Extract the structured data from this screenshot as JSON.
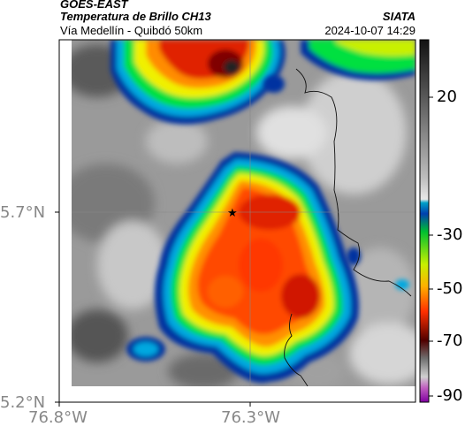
{
  "header": {
    "satellite": "GOES-EAST",
    "product": "Temperatura de Brillo CH13",
    "region": "Vía Medellín - Quibdó 50km",
    "agency": "SIATA",
    "datetime": "2024-10-07 14:29"
  },
  "axes": {
    "lat_ticks": [
      "5.7°N",
      "5.2°N"
    ],
    "lon_ticks": [
      "76.8°W",
      "76.3°W"
    ]
  },
  "colorbar": {
    "labels": [
      "20",
      "-30",
      "-50",
      "-70",
      "-90"
    ],
    "colors": {
      "warm_top": "#1a1a1a",
      "gray_mid": "#b0b0b0",
      "cyan": "#00b4d8",
      "blue": "#0030a0",
      "green": "#00e040",
      "yellow": "#f0f000",
      "orange": "#ff8000",
      "red": "#e02000",
      "darkred": "#700000",
      "magenta": "#c040c0"
    }
  },
  "map": {
    "marker": "star-icon"
  }
}
